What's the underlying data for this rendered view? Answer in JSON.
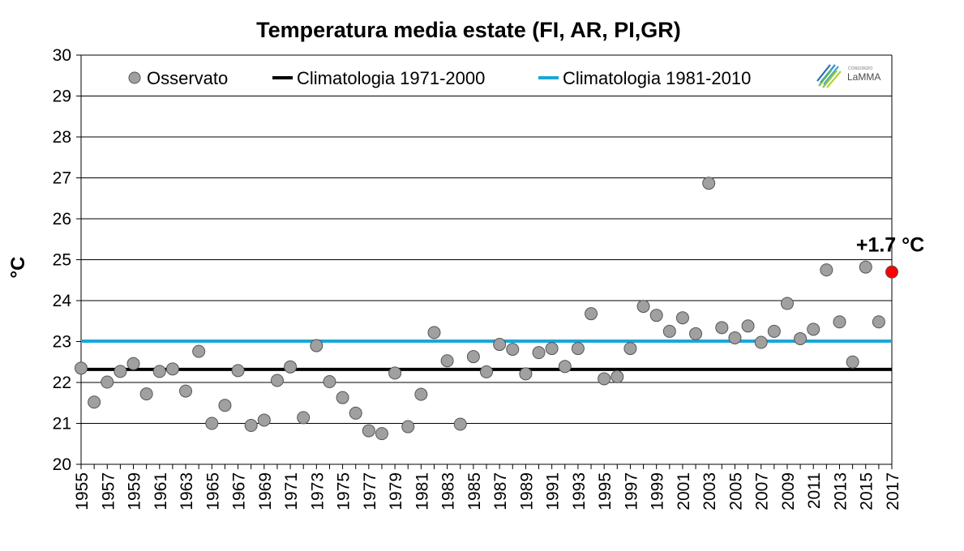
{
  "chart_data": {
    "type": "scatter",
    "title": "Temperatura media estate (FI, AR, PI,GR)",
    "ylabel": "°C",
    "xlabel": "",
    "ylim": [
      20,
      30
    ],
    "yticks": [
      "20",
      "21",
      "22",
      "23",
      "24",
      "25",
      "26",
      "27",
      "28",
      "29",
      "30"
    ],
    "xlim": [
      1955,
      2017
    ],
    "xticks": [
      "1955",
      "1957",
      "1959",
      "1961",
      "1963",
      "1965",
      "1967",
      "1969",
      "1971",
      "1973",
      "1975",
      "1977",
      "1979",
      "1981",
      "1983",
      "1985",
      "1987",
      "1989",
      "1991",
      "1993",
      "1995",
      "1997",
      "1999",
      "2001",
      "2003",
      "2005",
      "2007",
      "2009",
      "2011",
      "2013",
      "2015",
      "2017"
    ],
    "grid": "horizontal",
    "legend_position": "top",
    "series": [
      {
        "name": "Osservato",
        "color": "#a0a0a0",
        "x": [
          1955,
          1956,
          1957,
          1958,
          1959,
          1960,
          1961,
          1962,
          1963,
          1964,
          1965,
          1966,
          1967,
          1968,
          1969,
          1970,
          1971,
          1972,
          1973,
          1974,
          1975,
          1976,
          1977,
          1978,
          1979,
          1980,
          1981,
          1982,
          1983,
          1984,
          1985,
          1986,
          1987,
          1988,
          1989,
          1990,
          1991,
          1992,
          1993,
          1994,
          1995,
          1996,
          1997,
          1998,
          1999,
          2000,
          2001,
          2002,
          2003,
          2004,
          2005,
          2006,
          2007,
          2008,
          2009,
          2010,
          2011,
          2012,
          2013,
          2014,
          2015,
          2016
        ],
        "y": [
          22.35,
          21.52,
          22.01,
          22.27,
          22.46,
          21.72,
          22.27,
          22.33,
          21.79,
          22.76,
          21.0,
          21.44,
          22.29,
          20.95,
          21.08,
          22.05,
          22.38,
          21.14,
          22.9,
          22.02,
          21.63,
          21.25,
          20.82,
          20.75,
          22.23,
          20.92,
          21.71,
          23.22,
          22.53,
          20.98,
          22.63,
          22.26,
          22.93,
          22.81,
          22.21,
          22.73,
          22.83,
          22.39,
          22.83,
          23.68,
          22.09,
          22.14,
          22.83,
          23.86,
          23.64,
          23.25,
          23.58,
          23.19,
          26.87,
          23.34,
          23.09,
          23.38,
          22.98,
          23.25,
          23.93,
          23.07,
          23.3,
          24.75,
          23.48,
          22.5,
          24.82,
          23.48
        ]
      },
      {
        "name": "highlight",
        "color": "#ff0000",
        "x": [
          2017
        ],
        "y": [
          24.7
        ]
      },
      {
        "name": "Climatologia 1971-2000",
        "color": "#000000",
        "type": "hline",
        "value": 22.32
      },
      {
        "name": "Climatologia 1981-2010",
        "color": "#1aa7d8",
        "type": "hline",
        "value": 23.01
      }
    ],
    "legend": [
      "Osservato",
      "Climatologia 1971-2000",
      "Climatologia 1981-2010"
    ],
    "annotation": {
      "text": "+1.7 °C",
      "x": 2017,
      "y": 24.7
    }
  },
  "logo": {
    "top_text": "CONSORZIO",
    "text": "LaMMA"
  }
}
